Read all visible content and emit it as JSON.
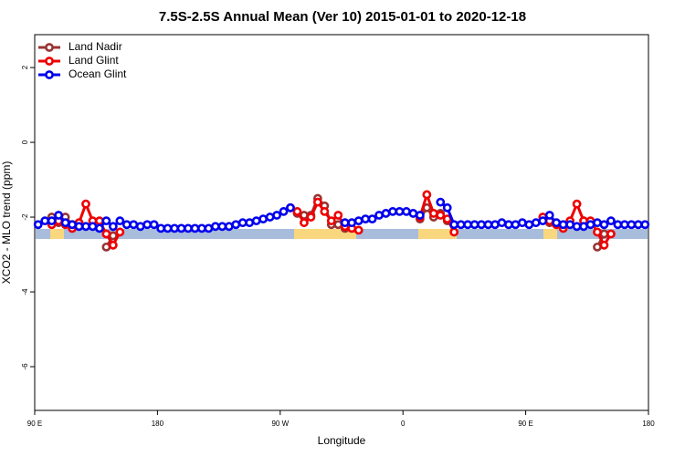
{
  "chart_data": {
    "type": "line",
    "title": "7.5S-2.5S Annual Mean (Ver 10)   2015-01-01 to 2020-12-18",
    "x_label": "Longitude",
    "y_label": "XCO2 - MLO trend (ppm)",
    "xlim": [
      90,
      540
    ],
    "xticks": [
      {
        "value": 90,
        "label": "90 E"
      },
      {
        "value": 180,
        "label": "180"
      },
      {
        "value": 270,
        "label": "90 W"
      },
      {
        "value": 360,
        "label": "0"
      },
      {
        "value": 450,
        "label": "90 E"
      },
      {
        "value": 540,
        "label": "180"
      }
    ],
    "ylim": [
      -7.17,
      2.88
    ],
    "yticks": [
      2,
      0,
      -2,
      -4,
      -6
    ],
    "legend": "top-left",
    "x": [
      92.5,
      97.5,
      102.5,
      107.5,
      112.5,
      117.5,
      122.5,
      127.5,
      132.5,
      137.5,
      142.5,
      147.5,
      152.5,
      157.5,
      162.5,
      167.5,
      172.5,
      177.5,
      182.5,
      187.5,
      192.5,
      197.5,
      202.5,
      207.5,
      212.5,
      217.5,
      222.5,
      227.5,
      232.5,
      237.5,
      242.5,
      247.5,
      252.5,
      257.5,
      262.5,
      267.5,
      272.5,
      277.5,
      282.5,
      287.5,
      292.5,
      297.5,
      302.5,
      307.5,
      312.5,
      317.5,
      322.5,
      327.5,
      332.5,
      337.5,
      342.5,
      347.5,
      352.5,
      357.5,
      362.5,
      367.5,
      372.5,
      377.5,
      382.5,
      387.5,
      392.5,
      397.5,
      402.5,
      407.5,
      412.5,
      417.5,
      422.5,
      427.5,
      432.5,
      437.5,
      442.5,
      447.5,
      452.5,
      457.5,
      462.5,
      467.5,
      472.5,
      477.5,
      482.5,
      487.5,
      492.5,
      497.5,
      502.5,
      507.5,
      512.5,
      517.5,
      522.5,
      527.5,
      532.5,
      537.5
    ],
    "series": [
      {
        "name": "Land Nadir",
        "color": "#993333",
        "values": [
          null,
          null,
          -2.0,
          -2.15,
          -2.0,
          -2.2,
          -2.2,
          null,
          null,
          null,
          -2.8,
          -2.5,
          null,
          null,
          null,
          null,
          null,
          null,
          null,
          null,
          null,
          null,
          null,
          null,
          null,
          null,
          null,
          null,
          null,
          null,
          null,
          null,
          null,
          null,
          null,
          null,
          null,
          null,
          -1.9,
          -1.95,
          -1.95,
          -1.5,
          -1.7,
          -2.2,
          -2.2,
          -2.3,
          null,
          null,
          null,
          null,
          null,
          null,
          null,
          null,
          null,
          null,
          -2.05,
          -1.75,
          -2.0,
          -1.9,
          -2.1,
          null,
          null,
          null,
          null,
          null,
          null,
          null,
          null,
          null,
          null,
          null,
          null,
          null,
          null,
          -2.15,
          -2.2,
          -2.25,
          -2.2,
          null,
          -2.1,
          null,
          -2.8,
          -2.45,
          null,
          null,
          null,
          null,
          null,
          null
        ]
      },
      {
        "name": "Land Glint",
        "color": "#ee0000",
        "values": [
          null,
          null,
          -2.2,
          -2.1,
          -2.2,
          -2.3,
          -2.15,
          -1.65,
          -2.1,
          -2.1,
          -2.45,
          -2.75,
          -2.4,
          null,
          null,
          null,
          null,
          null,
          null,
          null,
          null,
          null,
          null,
          null,
          null,
          null,
          null,
          null,
          null,
          null,
          null,
          null,
          null,
          null,
          null,
          null,
          null,
          -1.75,
          -1.85,
          -2.15,
          -2.0,
          -1.6,
          -1.85,
          -2.1,
          -1.95,
          -2.25,
          -2.3,
          -2.35,
          null,
          null,
          null,
          null,
          null,
          null,
          null,
          null,
          -2.0,
          -1.4,
          -1.9,
          -1.95,
          -2.05,
          -2.4,
          null,
          null,
          null,
          null,
          null,
          null,
          null,
          null,
          null,
          null,
          null,
          null,
          -2.0,
          -2.1,
          -2.2,
          -2.3,
          -2.1,
          -1.65,
          -2.1,
          -2.1,
          -2.4,
          -2.75,
          -2.45,
          null,
          null,
          null,
          null,
          null
        ]
      },
      {
        "name": "Ocean Glint",
        "color": "#0000ee",
        "values": [
          -2.2,
          -2.1,
          -2.1,
          -1.95,
          -2.15,
          -2.2,
          -2.25,
          -2.25,
          -2.25,
          -2.3,
          -2.1,
          -2.25,
          -2.1,
          -2.2,
          -2.2,
          -2.25,
          -2.2,
          -2.2,
          -2.3,
          -2.3,
          -2.3,
          -2.3,
          -2.3,
          -2.3,
          -2.3,
          -2.3,
          -2.25,
          -2.25,
          -2.25,
          -2.2,
          -2.15,
          -2.15,
          -2.1,
          -2.05,
          -2.0,
          -1.95,
          -1.85,
          -1.75,
          null,
          null,
          null,
          null,
          null,
          null,
          null,
          -2.15,
          -2.15,
          -2.1,
          -2.05,
          -2.05,
          -1.95,
          -1.9,
          -1.85,
          -1.85,
          -1.85,
          -1.9,
          -1.95,
          null,
          null,
          -1.6,
          -1.75,
          -2.2,
          -2.2,
          -2.2,
          -2.2,
          -2.2,
          -2.2,
          -2.2,
          -2.15,
          -2.2,
          -2.2,
          -2.15,
          -2.2,
          -2.15,
          -2.1,
          -1.95,
          -2.15,
          -2.2,
          -2.2,
          -2.25,
          -2.25,
          -2.2,
          -2.15,
          -2.2,
          -2.1,
          -2.2,
          -2.2,
          -2.2,
          -2.2,
          -2.2
        ]
      }
    ]
  }
}
